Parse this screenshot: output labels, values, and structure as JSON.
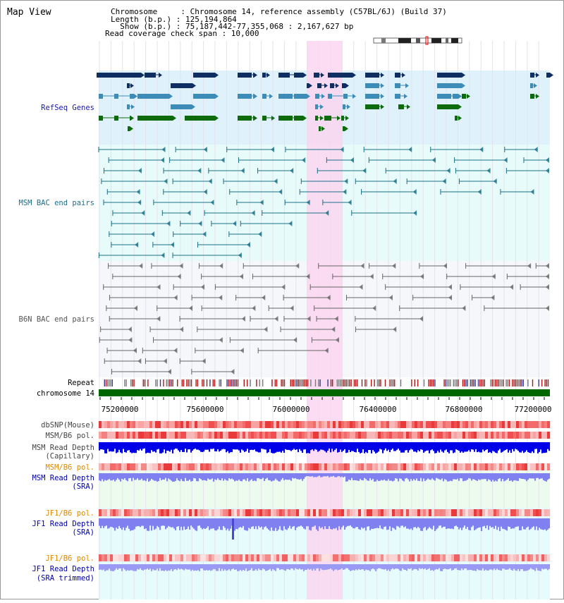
{
  "window": {
    "title": "Map View"
  },
  "header": {
    "chromosome_label": "Chromosome     : Chromosome 14, reference assembly (C57BL/6J) (Build 37)",
    "length_label": "Length (b.p.) : 125,194,864",
    "show_label": "  Show (b.p.) : 75,187,442-77,355,068 : 2,167,627 bp",
    "coverage_label": "Read coverage check span : 10,000"
  },
  "tracks": {
    "refseq": "RefSeq Genes",
    "msm_bac": "MSM BAC end pairs",
    "b6n_bac": "B6N BAC end pairs",
    "repeat": "Repeat",
    "chromosome": "chromosome 14",
    "dbsnp": "dbSNP(Mouse)",
    "msm_b6_pol_1": "MSM/B6 pol.",
    "msm_read_depth_cap_1": "MSM Read Depth",
    "msm_read_depth_cap_2": "(Capillary)",
    "msm_b6_pol_2": "MSM/B6 pol.",
    "msm_read_depth_sra_1": "MSM Read Depth",
    "msm_read_depth_sra_2": "(SRA)",
    "jf1_b6_pol_1": "JF1/B6 pol.",
    "jf1_read_depth_sra_1": "JF1 Read Depth",
    "jf1_read_depth_sra_2": "(SRA)",
    "jf1_b6_pol_2": "JF1/B6 pol.",
    "jf1_read_depth_trim_1": "JF1 Read Depth",
    "jf1_read_depth_trim_2": "(SRA trimmed)"
  },
  "axis": {
    "ticks": [
      "75200000",
      "75600000",
      "76000000",
      "76400000",
      "76800000",
      "77200000"
    ]
  },
  "colors": {
    "refseq_bg": "#dff1fb",
    "bac_bg": "#e8fbfb",
    "highlight": "#fad6f0",
    "gene_dark": "#0f2f63",
    "gene_mid": "#3d8cb8",
    "gene_green": "#0d6b0d",
    "msm_line": "#1a6f86",
    "b6n_line": "#666666",
    "chromosome_bar": "#006600",
    "label_refseq": "#1a1aaa",
    "label_msm": "#1f6f8b",
    "label_b6n": "#555555",
    "label_orange": "#e08a00",
    "label_blue": "#0000aa",
    "depth_blue": "#0000e8",
    "depth_light": "#8080f0"
  }
}
